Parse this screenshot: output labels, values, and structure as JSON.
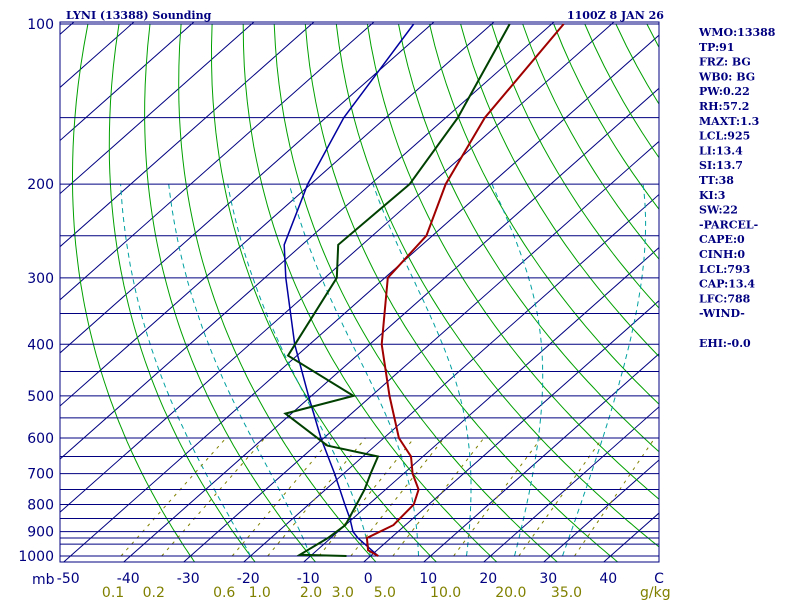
{
  "header": {
    "station": "LYNI (13388) Sounding",
    "time": "1100Z  8 JAN 26"
  },
  "indices": [
    "WMO:13388",
    "TP:91",
    "FRZ: BG",
    "WB0: BG",
    "PW:0.22",
    "RH:57.2",
    "MAXT:1.3",
    "LCL:925",
    "LI:13.4",
    "SI:13.7",
    "TT:38",
    "KI:3",
    "SW:22",
    "-PARCEL-",
    "CAPE:0",
    "CINH:0",
    "LCL:793",
    "CAP:13.4",
    "LFC:788",
    "-WIND-",
    "",
    "EHI:-0.0"
  ],
  "colors": {
    "frame": "#000080",
    "isobar": "#000080",
    "isotherm": "#000080",
    "dry_adiabat": "#00a000",
    "moist_adiabat": "#00a0a0",
    "mixing_ratio": "#808000",
    "temperature": "#a00000",
    "dewpoint": "#004000",
    "parcel": "#0000a0"
  },
  "chart_data": {
    "type": "skew-t",
    "title": "LYNI (13388) Sounding",
    "pressure_unit": "mb",
    "mixing_ratio_unit": "g/kg",
    "pressure_range": [
      1000,
      100
    ],
    "pressure_ticks": [
      100,
      200,
      300,
      400,
      500,
      600,
      700,
      800,
      900,
      1000
    ],
    "isobars": [
      100,
      150,
      200,
      250,
      300,
      350,
      400,
      450,
      500,
      550,
      600,
      650,
      700,
      750,
      800,
      850,
      900,
      925,
      950,
      1000
    ],
    "temperature_ticks": [
      -50,
      -40,
      -30,
      -20,
      -10,
      0,
      10,
      20,
      30,
      40
    ],
    "temperature_tick_labels": [
      "-50",
      "-40",
      "-30",
      "-20",
      "-10",
      "0",
      "10",
      "20",
      "30",
      "40",
      "C"
    ],
    "mixing_ratio_labels": [
      "0.1",
      "0.2",
      "0.6",
      "1.0",
      "2.0",
      "3.0",
      "5.0",
      "10.0",
      "20.0",
      "35.0"
    ],
    "mixing_ratio_values": [
      0.1,
      0.2,
      0.6,
      1.0,
      2.0,
      3.0,
      5.0,
      10.0,
      20.0,
      35.0
    ],
    "temperature_profile": [
      {
        "p": 1000,
        "t": 1.3
      },
      {
        "p": 975,
        "t": -1.5
      },
      {
        "p": 925,
        "t": -4.0
      },
      {
        "p": 875,
        "t": -2.0
      },
      {
        "p": 800,
        "t": -2.5
      },
      {
        "p": 750,
        "t": -4.5
      },
      {
        "p": 700,
        "t": -8.5
      },
      {
        "p": 650,
        "t": -12.0
      },
      {
        "p": 600,
        "t": -17.5
      },
      {
        "p": 500,
        "t": -27.0
      },
      {
        "p": 400,
        "t": -38.0
      },
      {
        "p": 300,
        "t": -49.5
      },
      {
        "p": 250,
        "t": -51.0
      },
      {
        "p": 200,
        "t": -57.5
      },
      {
        "p": 150,
        "t": -63.5
      },
      {
        "p": 100,
        "t": -68.0
      }
    ],
    "dewpoint_profile": [
      {
        "p": 1000,
        "t": -4.0
      },
      {
        "p": 995,
        "t": -12.0
      },
      {
        "p": 925,
        "t": -10.5
      },
      {
        "p": 875,
        "t": -10.0
      },
      {
        "p": 750,
        "t": -13.5
      },
      {
        "p": 700,
        "t": -15.5
      },
      {
        "p": 650,
        "t": -17.5
      },
      {
        "p": 620,
        "t": -28.0
      },
      {
        "p": 540,
        "t": -41.0
      },
      {
        "p": 500,
        "t": -33.0
      },
      {
        "p": 420,
        "t": -51.5
      },
      {
        "p": 300,
        "t": -58.0
      },
      {
        "p": 260,
        "t": -64.0
      },
      {
        "p": 200,
        "t": -63.5
      },
      {
        "p": 150,
        "t": -68.0
      },
      {
        "p": 100,
        "t": -77.0
      }
    ],
    "parcel_profile": [
      {
        "p": 1000,
        "t": 1.3
      },
      {
        "p": 925,
        "t": -5.5
      },
      {
        "p": 900,
        "t": -7.5
      },
      {
        "p": 850,
        "t": -10.5
      },
      {
        "p": 800,
        "t": -14.0
      },
      {
        "p": 700,
        "t": -21.5
      },
      {
        "p": 600,
        "t": -30.5
      },
      {
        "p": 500,
        "t": -40.5
      },
      {
        "p": 400,
        "t": -52.5
      },
      {
        "p": 300,
        "t": -66.5
      },
      {
        "p": 260,
        "t": -73.0
      },
      {
        "p": 200,
        "t": -80.5
      },
      {
        "p": 150,
        "t": -87.0
      },
      {
        "p": 100,
        "t": -93.0
      }
    ]
  }
}
